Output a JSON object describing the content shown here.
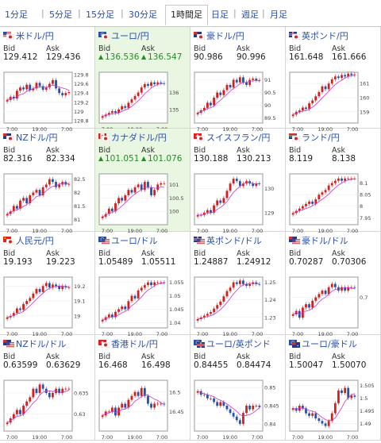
{
  "tabs": [
    {
      "label": "1分足",
      "active": false
    },
    {
      "label": "5分足",
      "active": false
    },
    {
      "label": "15分足",
      "active": false
    },
    {
      "label": "30分足",
      "active": false
    },
    {
      "label": "1時間足",
      "active": true
    },
    {
      "label": "日足",
      "active": false
    },
    {
      "label": "週足",
      "active": false
    },
    {
      "label": "月足",
      "active": false
    }
  ],
  "labels": {
    "bid": "Bid",
    "ask": "Ask"
  },
  "colors": {
    "link": "#2a4fa8",
    "up": "#2a8a2a",
    "highlight": "#e9f6e1",
    "candle_up": "#d22020",
    "candle_down": "#2a4fa8",
    "ma": "#cc33cc"
  },
  "pairs": [
    {
      "name": "米ドル/円",
      "flags": [
        "us",
        "jp"
      ],
      "bid": "129.412",
      "ask": "129.436",
      "dir": "",
      "highlight": false,
      "chart_data": {
        "type": "candlestick",
        "x_labels": [
          "7:00",
          "19:00",
          "7:00"
        ],
        "y_ticks": [
          "129.8",
          "129.6",
          "129.4",
          "129.2",
          "129",
          "128.8"
        ],
        "ylim": [
          128.75,
          129.85
        ],
        "close": [
          129.25,
          129.32,
          129.28,
          129.45,
          129.52,
          129.48,
          129.58,
          129.46,
          129.5,
          129.62,
          129.55,
          129.47,
          129.52,
          129.6,
          129.68,
          129.5,
          129.4,
          129.35,
          129.4,
          129.42
        ]
      }
    },
    {
      "name": "ユーロ/円",
      "flags": [
        "eu",
        "jp"
      ],
      "bid": "136.536",
      "ask": "136.547",
      "dir": "up",
      "highlight": true,
      "chart_data": {
        "type": "candlestick",
        "x_labels": [
          "7:00",
          "19:00",
          "7:00"
        ],
        "y_ticks": [
          "136",
          "135"
        ],
        "ylim": [
          134.2,
          137.2
        ],
        "close": [
          134.6,
          134.7,
          134.8,
          134.9,
          134.8,
          135.0,
          135.2,
          135.1,
          135.4,
          135.6,
          135.8,
          136.0,
          136.3,
          136.5,
          136.4,
          136.6,
          136.5,
          136.6,
          136.55,
          136.54
        ]
      }
    },
    {
      "name": "豪ドル/円",
      "flags": [
        "au",
        "jp"
      ],
      "bid": "90.986",
      "ask": "90.996",
      "dir": "",
      "highlight": false,
      "chart_data": {
        "type": "candlestick",
        "x_labels": [
          "7:00",
          "19:00",
          "7:00"
        ],
        "y_ticks": [
          "91",
          "90.5",
          "90",
          "89.5"
        ],
        "ylim": [
          89.3,
          91.3
        ],
        "close": [
          89.7,
          89.8,
          89.9,
          90.1,
          90.0,
          90.3,
          90.5,
          90.4,
          90.6,
          90.8,
          90.7,
          91.0,
          90.9,
          91.1,
          90.9,
          90.8,
          91.0,
          91.05,
          90.98,
          90.99
        ]
      }
    },
    {
      "name": "英ポンド/円",
      "flags": [
        "gb",
        "jp"
      ],
      "bid": "161.648",
      "ask": "161.666",
      "dir": "",
      "highlight": false,
      "chart_data": {
        "type": "candlestick",
        "x_labels": [
          "7:00",
          "19:00",
          "7:00"
        ],
        "y_ticks": [
          "161",
          "160",
          "159"
        ],
        "ylim": [
          158.2,
          161.8
        ],
        "close": [
          158.8,
          159.0,
          159.1,
          159.3,
          159.2,
          159.6,
          159.8,
          160.1,
          160.4,
          160.8,
          160.6,
          161.0,
          161.3,
          161.5,
          161.4,
          161.6,
          161.5,
          161.7,
          161.6,
          161.65
        ]
      }
    },
    {
      "name": "NZドル/円",
      "flags": [
        "nz",
        "jp"
      ],
      "bid": "82.316",
      "ask": "82.334",
      "dir": "",
      "highlight": false,
      "chart_data": {
        "type": "candlestick",
        "x_labels": [
          "7:00",
          "19:00",
          "7:00"
        ],
        "y_ticks": [
          "82.5",
          "82",
          "81.5",
          "81"
        ],
        "ylim": [
          80.8,
          82.7
        ],
        "close": [
          81.2,
          81.3,
          81.5,
          81.4,
          81.7,
          81.8,
          81.6,
          81.9,
          82.0,
          82.1,
          81.9,
          82.2,
          82.3,
          82.5,
          82.4,
          82.2,
          82.3,
          82.4,
          82.3,
          82.32
        ]
      }
    },
    {
      "name": "カナダドル/円",
      "flags": [
        "ca",
        "jp"
      ],
      "bid": "101.051",
      "ask": "101.076",
      "dir": "up",
      "highlight": true,
      "chart_data": {
        "type": "candlestick",
        "x_labels": [
          "7:00",
          "19:00",
          "7:00"
        ],
        "y_ticks": [
          "101",
          "100.5",
          "100"
        ],
        "ylim": [
          99.5,
          101.4
        ],
        "close": [
          99.8,
          99.9,
          100.1,
          100.0,
          100.3,
          100.5,
          100.4,
          100.6,
          100.8,
          100.7,
          100.9,
          101.0,
          100.8,
          101.1,
          100.9,
          100.6,
          100.8,
          101.0,
          101.05,
          101.05
        ]
      }
    },
    {
      "name": "スイスフラン/円",
      "flags": [
        "ch",
        "jp"
      ],
      "bid": "130.188",
      "ask": "130.213",
      "dir": "",
      "highlight": false,
      "chart_data": {
        "type": "candlestick",
        "x_labels": [
          "7:00",
          "19:00",
          "7:00"
        ],
        "y_ticks": [
          "130",
          "129"
        ],
        "ylim": [
          128.5,
          130.6
        ],
        "close": [
          128.9,
          128.9,
          129.0,
          129.1,
          129.0,
          129.3,
          129.5,
          129.4,
          129.6,
          129.9,
          130.2,
          130.4,
          130.3,
          130.1,
          130.2,
          130.3,
          130.2,
          130.1,
          130.2,
          130.19
        ]
      }
    },
    {
      "name": "ランド/円",
      "flags": [
        "za",
        "jp"
      ],
      "bid": "8.119",
      "ask": "8.138",
      "dir": "",
      "highlight": false,
      "chart_data": {
        "type": "candlestick",
        "x_labels": [
          "7:00",
          "19:00",
          "7:00"
        ],
        "y_ticks": [
          "8.1",
          "8.05",
          "8",
          "7.95"
        ],
        "ylim": [
          7.92,
          8.14
        ],
        "close": [
          7.97,
          7.98,
          7.99,
          8.0,
          8.01,
          8.02,
          8.01,
          8.03,
          8.05,
          8.06,
          8.07,
          8.09,
          8.1,
          8.11,
          8.12,
          8.11,
          8.12,
          8.12,
          8.12,
          8.12
        ]
      }
    },
    {
      "name": "人民元/円",
      "flags": [
        "cn",
        "jp"
      ],
      "bid": "19.193",
      "ask": "19.223",
      "dir": "",
      "highlight": false,
      "chart_data": {
        "type": "candlestick",
        "x_labels": [
          "7:00",
          "19:00",
          "7:00"
        ],
        "y_ticks": [
          "19.2",
          "19.1",
          "19"
        ],
        "ylim": [
          18.92,
          19.26
        ],
        "close": [
          18.99,
          19.0,
          19.02,
          19.05,
          19.04,
          19.08,
          19.1,
          19.12,
          19.15,
          19.18,
          19.16,
          19.2,
          19.22,
          19.19,
          19.21,
          19.2,
          19.18,
          19.2,
          19.19,
          19.19
        ]
      }
    },
    {
      "name": "ユーロ/ドル",
      "flags": [
        "eu",
        "us"
      ],
      "bid": "1.05489",
      "ask": "1.05511",
      "dir": "",
      "highlight": false,
      "chart_data": {
        "type": "candlestick",
        "x_labels": [
          "7:00",
          "19:00",
          "7:00"
        ],
        "y_ticks": [
          "1.055",
          "1.05",
          "1.045",
          "1.04"
        ],
        "ylim": [
          1.038,
          1.057
        ],
        "close": [
          1.041,
          1.042,
          1.043,
          1.042,
          1.044,
          1.045,
          1.046,
          1.045,
          1.048,
          1.05,
          1.049,
          1.052,
          1.053,
          1.054,
          1.055,
          1.054,
          1.055,
          1.055,
          1.055,
          1.0549
        ]
      }
    },
    {
      "name": "英ポンド/ドル",
      "flags": [
        "gb",
        "us"
      ],
      "bid": "1.24887",
      "ask": "1.24912",
      "dir": "",
      "highlight": false,
      "chart_data": {
        "type": "candlestick",
        "x_labels": [
          "7:00",
          "19:00",
          "7:00"
        ],
        "y_ticks": [
          "1.25",
          "1.24",
          "1.23"
        ],
        "ylim": [
          1.224,
          1.253
        ],
        "close": [
          1.229,
          1.23,
          1.231,
          1.232,
          1.233,
          1.235,
          1.237,
          1.239,
          1.242,
          1.245,
          1.247,
          1.25,
          1.249,
          1.251,
          1.249,
          1.248,
          1.249,
          1.25,
          1.249,
          1.2489
        ]
      }
    },
    {
      "name": "豪ドル/ドル",
      "flags": [
        "au",
        "us"
      ],
      "bid": "0.70287",
      "ask": "0.70306",
      "dir": "",
      "highlight": false,
      "chart_data": {
        "type": "candlestick",
        "x_labels": [
          "7:00",
          "19:00",
          "7:00"
        ],
        "y_ticks": [
          "0.7"
        ],
        "ylim": [
          0.691,
          0.706
        ],
        "close": [
          0.695,
          0.696,
          0.694,
          0.697,
          0.698,
          0.697,
          0.699,
          0.7,
          0.701,
          0.702,
          0.701,
          0.703,
          0.704,
          0.703,
          0.702,
          0.703,
          0.702,
          0.703,
          0.703,
          0.7029
        ]
      }
    },
    {
      "name": "NZドル/ドル",
      "flags": [
        "nz",
        "us"
      ],
      "bid": "0.63599",
      "ask": "0.63629",
      "dir": "",
      "highlight": false,
      "chart_data": {
        "type": "candlestick",
        "x_labels": [
          "7:00",
          "19:00",
          "7:00"
        ],
        "y_ticks": [
          "0.635",
          "0.63"
        ],
        "ylim": [
          0.626,
          0.638
        ],
        "close": [
          0.628,
          0.629,
          0.63,
          0.631,
          0.63,
          0.632,
          0.633,
          0.634,
          0.636,
          0.635,
          0.637,
          0.636,
          0.635,
          0.634,
          0.635,
          0.636,
          0.635,
          0.636,
          0.636,
          0.636
        ]
      }
    },
    {
      "name": "香港ドル/円",
      "flags": [
        "hk",
        "jp"
      ],
      "bid": "16.468",
      "ask": "16.498",
      "dir": "",
      "highlight": false,
      "chart_data": {
        "type": "candlestick",
        "x_labels": [
          "7:00",
          "19:00",
          "7:00"
        ],
        "y_ticks": [
          "16.5",
          "16.45"
        ],
        "ylim": [
          16.4,
          16.53
        ],
        "close": [
          16.44,
          16.45,
          16.45,
          16.46,
          16.44,
          16.46,
          16.47,
          16.46,
          16.48,
          16.49,
          16.5,
          16.49,
          16.51,
          16.49,
          16.47,
          16.46,
          16.47,
          16.47,
          16.47,
          16.468
        ]
      }
    },
    {
      "name": "ユーロ/英ポンド",
      "flags": [
        "eu",
        "gb"
      ],
      "bid": "0.84455",
      "ask": "0.84474",
      "dir": "",
      "highlight": false,
      "chart_data": {
        "type": "candlestick",
        "x_labels": [
          "7:00",
          "19:00",
          "7:00"
        ],
        "y_ticks": [
          "0.85",
          "0.845",
          "0.84"
        ],
        "ylim": [
          0.838,
          0.852
        ],
        "close": [
          0.849,
          0.848,
          0.848,
          0.847,
          0.847,
          0.846,
          0.845,
          0.846,
          0.845,
          0.844,
          0.843,
          0.842,
          0.841,
          0.84,
          0.843,
          0.845,
          0.844,
          0.845,
          0.845,
          0.8446
        ]
      }
    },
    {
      "name": "ユーロ/豪ドル",
      "flags": [
        "eu",
        "au"
      ],
      "bid": "1.50047",
      "ask": "1.50070",
      "dir": "",
      "highlight": false,
      "chart_data": {
        "type": "candlestick",
        "x_labels": [
          "7:00",
          "19:00",
          "7:00"
        ],
        "y_ticks": [
          "1.505",
          "1.5",
          "1.495",
          "1.49"
        ],
        "ylim": [
          1.487,
          1.507
        ],
        "close": [
          1.496,
          1.495,
          1.497,
          1.496,
          1.494,
          1.493,
          1.494,
          1.492,
          1.491,
          1.49,
          1.489,
          1.491,
          1.494,
          1.498,
          1.503,
          1.502,
          1.504,
          1.5,
          1.501,
          1.5005
        ]
      }
    }
  ]
}
